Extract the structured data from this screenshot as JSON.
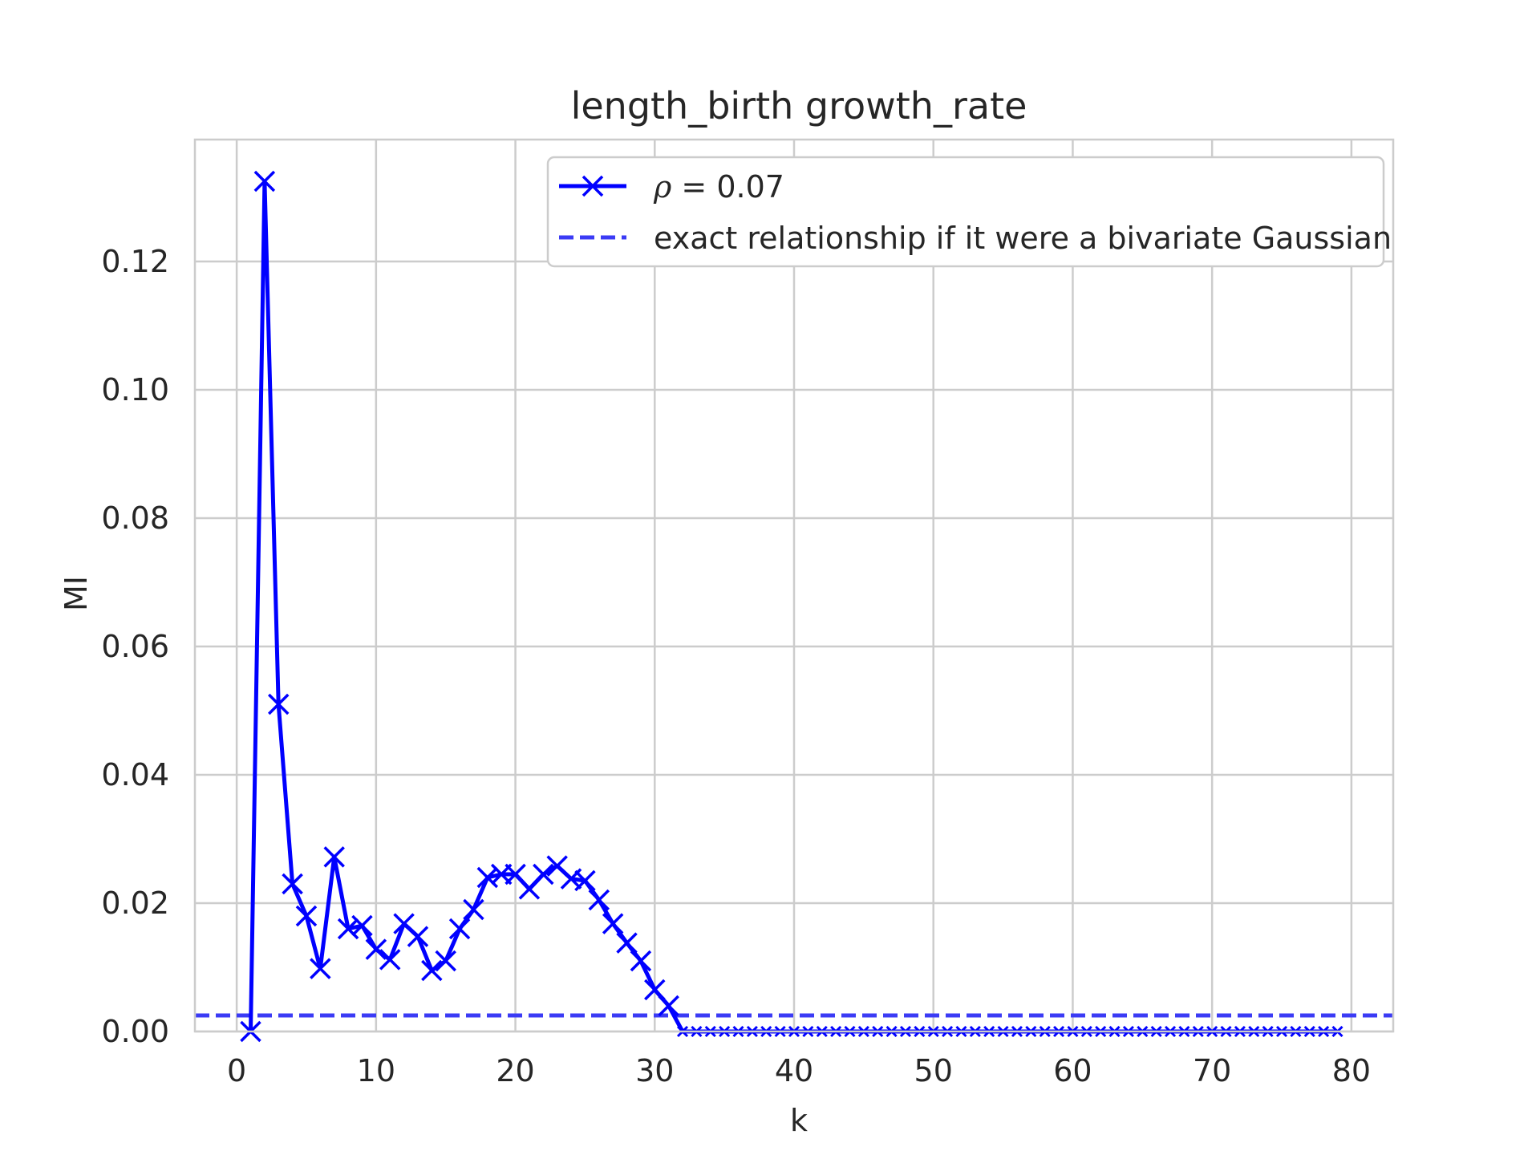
{
  "colors": {
    "series": "#0000ff",
    "reference": "#3b3bf5",
    "grid": "#cccccc",
    "frame": "#cccccc",
    "text": "#262626"
  },
  "chart_data": {
    "type": "line",
    "title": "length_birth growth_rate",
    "xlabel": "k",
    "ylabel": "MI",
    "xlim": [
      -3,
      83
    ],
    "ylim": [
      0,
      0.139
    ],
    "x_ticks": [
      0,
      10,
      20,
      30,
      40,
      50,
      60,
      70,
      80
    ],
    "y_ticks": [
      0.0,
      0.02,
      0.04,
      0.06,
      0.08,
      0.1,
      0.12
    ],
    "x_tick_labels": [
      "0",
      "10",
      "20",
      "30",
      "40",
      "50",
      "60",
      "70",
      "80"
    ],
    "y_tick_labels": [
      "0.00",
      "0.02",
      "0.04",
      "0.06",
      "0.08",
      "0.10",
      "0.12"
    ],
    "grid": true,
    "legend_position": "top-right",
    "legend": {
      "series_symbol": "ρ",
      "series_value": " = 0.07",
      "reference_label": "exact relationship if it were a bivariate Gaussian"
    },
    "series": [
      {
        "marker": "x",
        "style": "solid",
        "x": [
          1,
          2,
          3,
          4,
          5,
          6,
          7,
          8,
          9,
          10,
          11,
          12,
          13,
          14,
          15,
          16,
          17,
          18,
          19,
          20,
          21,
          22,
          23,
          24,
          25,
          26,
          27,
          28,
          29,
          30,
          31,
          32,
          33,
          34,
          35,
          36,
          37,
          38,
          39,
          40,
          41,
          42,
          43,
          44,
          45,
          46,
          47,
          48,
          49,
          50,
          51,
          52,
          53,
          54,
          55,
          56,
          57,
          58,
          59,
          60,
          61,
          62,
          63,
          64,
          65,
          66,
          67,
          68,
          69,
          70,
          71,
          72,
          73,
          74,
          75,
          76,
          77,
          78,
          79
        ],
        "values": [
          0.0,
          0.1325,
          0.051,
          0.023,
          0.018,
          0.0098,
          0.0272,
          0.016,
          0.0165,
          0.0128,
          0.0112,
          0.0168,
          0.0148,
          0.0095,
          0.011,
          0.016,
          0.019,
          0.024,
          0.0245,
          0.0245,
          0.0222,
          0.0245,
          0.0258,
          0.0238,
          0.0235,
          0.0205,
          0.0168,
          0.0138,
          0.011,
          0.0065,
          0.004,
          0.0,
          0.0,
          0.0,
          0.0,
          0.0,
          0.0,
          0.0,
          0.0,
          0.0,
          0.0,
          0.0,
          0.0,
          0.0,
          0.0,
          0.0,
          0.0,
          0.0,
          0.0,
          0.0,
          0.0,
          0.0,
          0.0,
          0.0,
          0.0,
          0.0,
          0.0,
          0.0,
          0.0,
          0.0,
          0.0,
          0.0,
          0.0,
          0.0,
          0.0,
          0.0,
          0.0,
          0.0,
          0.0,
          0.0,
          0.0,
          0.0,
          0.0,
          0.0,
          0.0,
          0.0,
          0.0,
          0.0,
          0.0
        ]
      }
    ],
    "reference_line": {
      "style": "dashed",
      "y": 0.0025
    }
  }
}
